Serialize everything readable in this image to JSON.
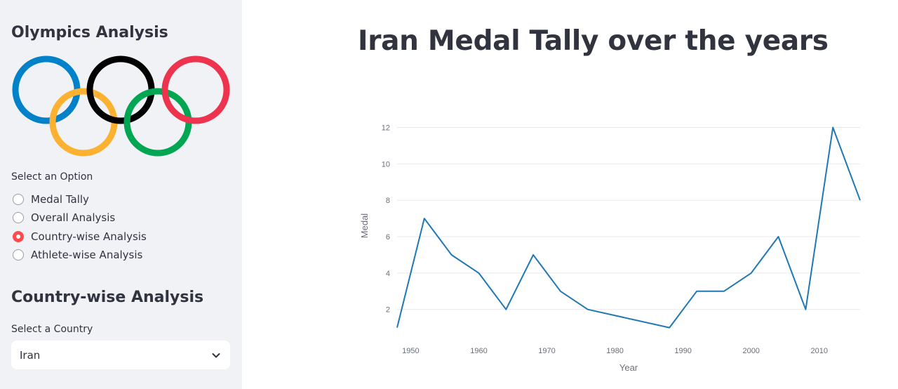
{
  "sidebar": {
    "title": "Olympics Analysis",
    "logo_name": "olympic-rings-logo",
    "ring_colors": [
      "#0081C8",
      "#FCB131",
      "#000000",
      "#00A651",
      "#EE334E"
    ],
    "radio_label": "Select an Option",
    "options": [
      {
        "label": "Medal Tally",
        "selected": false
      },
      {
        "label": "Overall Analysis",
        "selected": false
      },
      {
        "label": "Country-wise Analysis",
        "selected": true
      },
      {
        "label": "Athlete-wise Analysis",
        "selected": false
      }
    ],
    "section_heading": "Country-wise Analysis",
    "select_label": "Select a Country",
    "select_value": "Iran",
    "accent_color": "#ff4b4b"
  },
  "main": {
    "title": "Iran Medal Tally over the years"
  },
  "chart_data": {
    "type": "line",
    "title": "",
    "xlabel": "Year",
    "ylabel": "Medal",
    "xlim": [
      1948,
      2016
    ],
    "ylim": [
      0.6,
      12.6
    ],
    "x_ticks": [
      1950,
      1960,
      1970,
      1980,
      1990,
      2000,
      2010
    ],
    "y_ticks": [
      2,
      4,
      6,
      8,
      10,
      12
    ],
    "grid": true,
    "line_color": "#1f77b4",
    "series": [
      {
        "x": [
          1948,
          1952,
          1956,
          1960,
          1964,
          1968,
          1972,
          1976,
          1988,
          1992,
          1996,
          2000,
          2004,
          2008,
          2012,
          2016
        ],
        "y": [
          1,
          7,
          5,
          4,
          2,
          5,
          3,
          2,
          1,
          3,
          3,
          4,
          6,
          2,
          12,
          8
        ]
      }
    ]
  }
}
